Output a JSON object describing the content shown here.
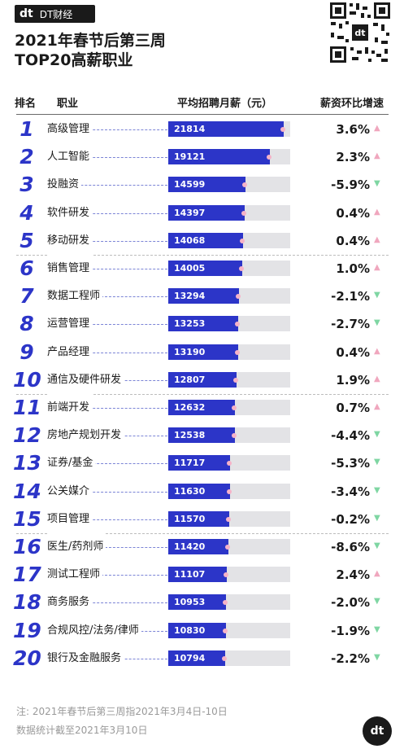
{
  "brand": {
    "logo_mark": "dt",
    "name": "DT财经",
    "badge_color": "#1a1a1a"
  },
  "title": {
    "line1": "2021年春节后第三周",
    "line2": "TOP20高薪职业"
  },
  "header": {
    "rank": "排名",
    "job": "职业",
    "salary": "平均招聘月薪（元）",
    "growth": "薪资环比增速"
  },
  "colors": {
    "bar": "#2c35c8",
    "track": "#e3e3e6",
    "up_arrow": "#f0a7be",
    "down_arrow": "#7fd6a3",
    "marker": "#f6b3c8"
  },
  "chart_data": {
    "type": "bar",
    "orientation": "horizontal",
    "xlim": [
      0,
      23000
    ],
    "rows": [
      {
        "rank": "1",
        "job": "高级管理",
        "salary": 21814,
        "salary_label": "21814",
        "growth": "3.6%",
        "direction": "up"
      },
      {
        "rank": "2",
        "job": "人工智能",
        "salary": 19121,
        "salary_label": "19121",
        "growth": "2.3%",
        "direction": "up"
      },
      {
        "rank": "3",
        "job": "投融资",
        "salary": 14599,
        "salary_label": "14599",
        "growth": "-5.9%",
        "direction": "down"
      },
      {
        "rank": "4",
        "job": "软件研发",
        "salary": 14397,
        "salary_label": "14397",
        "growth": "0.4%",
        "direction": "up"
      },
      {
        "rank": "5",
        "job": "移动研发",
        "salary": 14068,
        "salary_label": "14068",
        "growth": "0.4%",
        "direction": "up"
      },
      {
        "rank": "6",
        "job": "销售管理",
        "salary": 14005,
        "salary_label": "14005",
        "growth": "1.0%",
        "direction": "up"
      },
      {
        "rank": "7",
        "job": "数据工程师",
        "salary": 13294,
        "salary_label": "13294",
        "growth": "-2.1%",
        "direction": "down"
      },
      {
        "rank": "8",
        "job": "运营管理",
        "salary": 13253,
        "salary_label": "13253",
        "growth": "-2.7%",
        "direction": "down"
      },
      {
        "rank": "9",
        "job": "产品经理",
        "salary": 13190,
        "salary_label": "13190",
        "growth": "0.4%",
        "direction": "up"
      },
      {
        "rank": "10",
        "job": "通信及硬件研发",
        "salary": 12807,
        "salary_label": "12807",
        "growth": "1.9%",
        "direction": "up"
      },
      {
        "rank": "11",
        "job": "前端开发",
        "salary": 12632,
        "salary_label": "12632",
        "growth": "0.7%",
        "direction": "up"
      },
      {
        "rank": "12",
        "job": "房地产规划开发",
        "salary": 12538,
        "salary_label": "12538",
        "growth": "-4.4%",
        "direction": "down"
      },
      {
        "rank": "13",
        "job": "证券/基金",
        "salary": 11717,
        "salary_label": "11717",
        "growth": "-5.3%",
        "direction": "down"
      },
      {
        "rank": "14",
        "job": "公关媒介",
        "salary": 11630,
        "salary_label": "11630",
        "growth": "-3.4%",
        "direction": "down"
      },
      {
        "rank": "15",
        "job": "项目管理",
        "salary": 11570,
        "salary_label": "11570",
        "growth": "-0.2%",
        "direction": "down"
      },
      {
        "rank": "16",
        "job": "医生/药剂师",
        "salary": 11420,
        "salary_label": "11420",
        "growth": "-8.6%",
        "direction": "down"
      },
      {
        "rank": "17",
        "job": "测试工程师",
        "salary": 11107,
        "salary_label": "11107",
        "growth": "2.4%",
        "direction": "up"
      },
      {
        "rank": "18",
        "job": "商务服务",
        "salary": 10953,
        "salary_label": "10953",
        "growth": "-2.0%",
        "direction": "down"
      },
      {
        "rank": "19",
        "job": "合规风控/法务/律师",
        "salary": 10830,
        "salary_label": "10830",
        "growth": "-1.9%",
        "direction": "down"
      },
      {
        "rank": "20",
        "job": "银行及金融服务",
        "salary": 10794,
        "salary_label": "10794",
        "growth": "-2.2%",
        "direction": "down"
      }
    ]
  },
  "notes": {
    "line1": "注: 2021年春节后第三周指2021年3月4日-10日",
    "line2": "数据统计截至2021年3月10日"
  },
  "footer": {
    "logo_mark": "dt"
  }
}
